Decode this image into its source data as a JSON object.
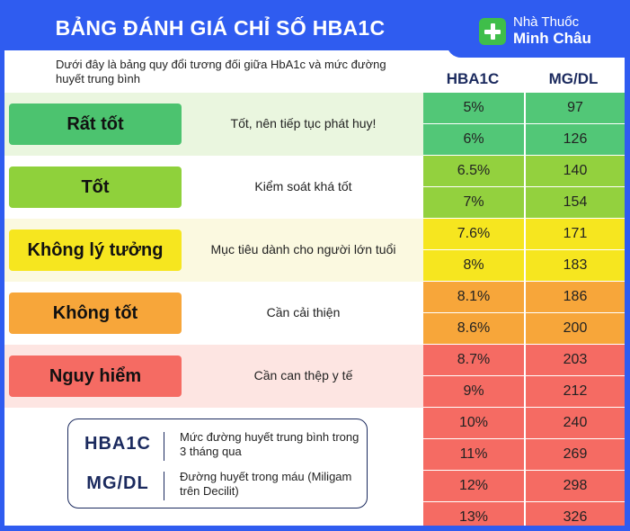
{
  "title": "BẢNG ĐÁNH GIÁ CHỈ SỐ HBA1C",
  "brand": {
    "line1": "Nhà Thuốc",
    "line2": "Minh Châu"
  },
  "intro": "Dưới đây là bảng quy đổi tương đối giữa HbA1c và mức đường huyết trung bình",
  "columns": {
    "hba1c": "HBA1C",
    "mgdl": "MG/DL"
  },
  "levels": [
    {
      "label": "Rất tốt",
      "description": "Tốt, nên tiếp tục phát huy!",
      "color": "#4cc36f",
      "band": "#eaf6df"
    },
    {
      "label": "Tốt",
      "description": "Kiểm soát khá tốt",
      "color": "#8fd13b",
      "band": "#ffffff"
    },
    {
      "label": "Không lý tưởng",
      "description": "Mục tiêu dành cho người lớn tuổi",
      "color": "#f6e61f",
      "band": "#fbf9e0"
    },
    {
      "label": "Không tốt",
      "description": "Cần cải thiện",
      "color": "#f7a63a",
      "band": "#ffffff"
    },
    {
      "label": "Nguy hiểm",
      "description": "Cần can thệp y tế",
      "color": "#f56b63",
      "band": "#fde5e2"
    }
  ],
  "rows": [
    {
      "hba1c": "5%",
      "mgdl": "97",
      "color": "#52c777"
    },
    {
      "hba1c": "6%",
      "mgdl": "126",
      "color": "#52c777"
    },
    {
      "hba1c": "6.5%",
      "mgdl": "140",
      "color": "#93d13e"
    },
    {
      "hba1c": "7%",
      "mgdl": "154",
      "color": "#93d13e"
    },
    {
      "hba1c": "7.6%",
      "mgdl": "171",
      "color": "#f6e61f"
    },
    {
      "hba1c": "8%",
      "mgdl": "183",
      "color": "#f6e61f"
    },
    {
      "hba1c": "8.1%",
      "mgdl": "186",
      "color": "#f7a63a"
    },
    {
      "hba1c": "8.6%",
      "mgdl": "200",
      "color": "#f7a63a"
    },
    {
      "hba1c": "8.7%",
      "mgdl": "203",
      "color": "#f56b63"
    },
    {
      "hba1c": "9%",
      "mgdl": "212",
      "color": "#f56b63"
    },
    {
      "hba1c": "10%",
      "mgdl": "240",
      "color": "#f56b63"
    },
    {
      "hba1c": "11%",
      "mgdl": "269",
      "color": "#f56b63"
    },
    {
      "hba1c": "12%",
      "mgdl": "298",
      "color": "#f56b63"
    },
    {
      "hba1c": "13%",
      "mgdl": "326",
      "color": "#f56b63"
    }
  ],
  "legend": [
    {
      "key": "HBA1C",
      "value": "Mức đường huyết trung bình trong 3 tháng qua"
    },
    {
      "key": "MG/DL",
      "value": "Đường huyết trong máu (Miligam trên Decilit)"
    }
  ]
}
